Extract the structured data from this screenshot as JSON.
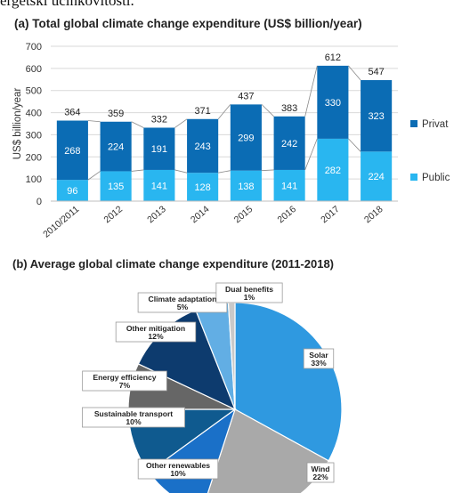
{
  "page": {
    "top_text": "ergetski učinkovitosti."
  },
  "chart_data": [
    {
      "type": "bar",
      "title": "(a) Total global climate change expenditure (US$ billion/year)",
      "ylabel": "US$ billion/year",
      "xlabel": "",
      "ylim": [
        0,
        700
      ],
      "yticks": [
        0,
        100,
        200,
        300,
        400,
        500,
        600,
        700
      ],
      "categories": [
        "2010/2011",
        "2012",
        "2013",
        "2014",
        "2015",
        "2016",
        "2017",
        "2018"
      ],
      "series": [
        {
          "name": "Public",
          "values": [
            96,
            135,
            141,
            128,
            138,
            141,
            282,
            224
          ],
          "color": "#29b6f0"
        },
        {
          "name": "Privat",
          "values": [
            268,
            224,
            191,
            243,
            299,
            242,
            330,
            323
          ],
          "color": "#0b6cb4"
        }
      ],
      "totals": [
        364,
        359,
        332,
        371,
        437,
        383,
        612,
        547
      ],
      "stacked": true,
      "legend": "right",
      "grid": true
    },
    {
      "type": "pie",
      "title": "(b) Average global climate change expenditure (2011-2018)",
      "slices": [
        {
          "label": "Solar",
          "pct_label": "33%",
          "value": 33,
          "color": "#2f99e0"
        },
        {
          "label": "Wind",
          "pct_label": "22%",
          "value": 22,
          "color": "#a9a9a9"
        },
        {
          "label": "Other renewables",
          "pct_label": "10%",
          "value": 10,
          "color": "#1a70c8"
        },
        {
          "label": "Sustainable transport",
          "pct_label": "10%",
          "value": 10,
          "color": "#0f5a8f"
        },
        {
          "label": "Energy efficiency",
          "pct_label": "7%",
          "value": 7,
          "color": "#666666"
        },
        {
          "label": "Other mitigation",
          "pct_label": "12%",
          "value": 12,
          "color": "#0d3b6e"
        },
        {
          "label": "Climate adaptation",
          "pct_label": "5%",
          "value": 5,
          "color": "#62aee4"
        },
        {
          "label": "Dual benefits",
          "pct_label": "1%",
          "value": 1,
          "color": "#c9c9c9"
        }
      ]
    }
  ]
}
